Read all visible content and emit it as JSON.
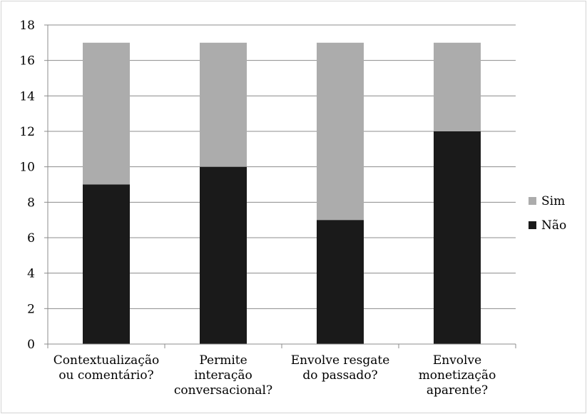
{
  "chart_data": {
    "type": "bar",
    "stacked": true,
    "categories": [
      [
        "Contextualização",
        "ou comentário?"
      ],
      [
        "Permite",
        "interação",
        "conversacional?"
      ],
      [
        "Envolve resgate",
        "do passado?"
      ],
      [
        "Envolve",
        "monetização",
        "aparente?"
      ]
    ],
    "series": [
      {
        "name": "Não",
        "values": [
          9,
          10,
          7,
          12
        ],
        "color": "#1a1a1a"
      },
      {
        "name": "Sim",
        "values": [
          8,
          7,
          10,
          5
        ],
        "color": "#acacac"
      }
    ],
    "ylim": [
      0,
      18
    ],
    "yticks": [
      0,
      2,
      4,
      6,
      8,
      10,
      12,
      14,
      16,
      18
    ],
    "grid": true,
    "legend_position": "right",
    "legend_order": [
      "Sim",
      "Não"
    ]
  }
}
